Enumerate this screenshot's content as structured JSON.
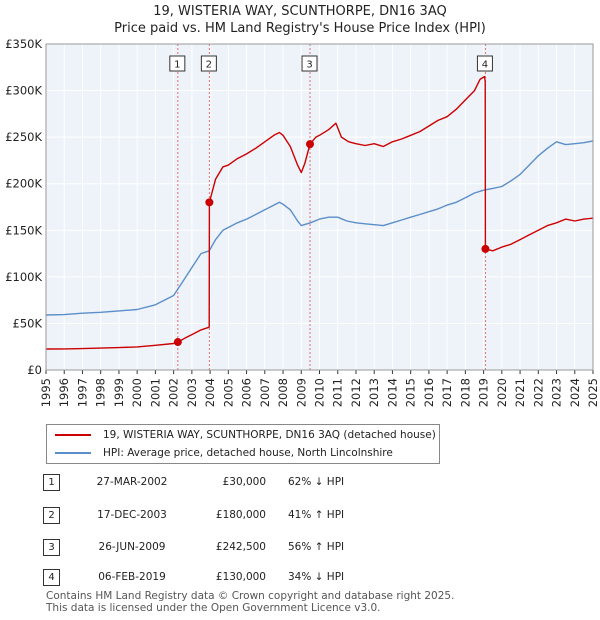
{
  "chart_data": {
    "type": "line",
    "title": "19, WISTERIA WAY, SCUNTHORPE, DN16 3AQ",
    "subtitle": "Price paid vs. HM Land Registry's House Price Index (HPI)",
    "ylim": [
      0,
      350000
    ],
    "xlim": [
      1995,
      2025
    ],
    "y_ticks": [
      0,
      50000,
      100000,
      150000,
      200000,
      250000,
      300000,
      350000
    ],
    "y_tick_labels": [
      "£0",
      "£50K",
      "£100K",
      "£150K",
      "£200K",
      "£250K",
      "£300K",
      "£350K"
    ],
    "x_ticks": [
      1995,
      1996,
      1997,
      1998,
      1999,
      2000,
      2001,
      2002,
      2003,
      2004,
      2005,
      2006,
      2007,
      2008,
      2009,
      2010,
      2011,
      2012,
      2013,
      2014,
      2015,
      2016,
      2017,
      2018,
      2019,
      2020,
      2021,
      2022,
      2023,
      2024,
      2025
    ],
    "grid": true,
    "series": [
      {
        "name": "19, WISTERIA WAY, SCUNTHORPE, DN16 3AQ (detached house)",
        "color": "#cc0000",
        "points": [
          [
            1995.0,
            22500
          ],
          [
            1996.0,
            22600
          ],
          [
            1997.0,
            23000
          ],
          [
            1998.0,
            23500
          ],
          [
            1999.0,
            24000
          ],
          [
            2000.0,
            24800
          ],
          [
            2001.0,
            26500
          ],
          [
            2002.0,
            28500
          ],
          [
            2002.23,
            30000
          ],
          [
            2002.6,
            34000
          ],
          [
            2003.0,
            38000
          ],
          [
            2003.5,
            43000
          ],
          [
            2003.95,
            46000
          ],
          [
            2003.96,
            180000
          ],
          [
            2004.3,
            205000
          ],
          [
            2004.7,
            218000
          ],
          [
            2005.0,
            220000
          ],
          [
            2005.5,
            227000
          ],
          [
            2006.0,
            232000
          ],
          [
            2006.5,
            238000
          ],
          [
            2007.0,
            245000
          ],
          [
            2007.5,
            252000
          ],
          [
            2007.8,
            255000
          ],
          [
            2008.0,
            252000
          ],
          [
            2008.4,
            240000
          ],
          [
            2008.8,
            220000
          ],
          [
            2009.0,
            212000
          ],
          [
            2009.2,
            222000
          ],
          [
            2009.48,
            242500
          ],
          [
            2009.8,
            250000
          ],
          [
            2010.0,
            252000
          ],
          [
            2010.5,
            258000
          ],
          [
            2010.9,
            265000
          ],
          [
            2011.2,
            250000
          ],
          [
            2011.6,
            245000
          ],
          [
            2012.0,
            243000
          ],
          [
            2012.5,
            241000
          ],
          [
            2013.0,
            243000
          ],
          [
            2013.5,
            240000
          ],
          [
            2014.0,
            245000
          ],
          [
            2014.5,
            248000
          ],
          [
            2015.0,
            252000
          ],
          [
            2015.5,
            256000
          ],
          [
            2016.0,
            262000
          ],
          [
            2016.5,
            268000
          ],
          [
            2017.0,
            272000
          ],
          [
            2017.5,
            280000
          ],
          [
            2018.0,
            290000
          ],
          [
            2018.5,
            300000
          ],
          [
            2018.8,
            312000
          ],
          [
            2019.05,
            315000
          ],
          [
            2019.09,
            310000
          ],
          [
            2019.1,
            130000
          ],
          [
            2019.5,
            128000
          ],
          [
            2020.0,
            132000
          ],
          [
            2020.5,
            135000
          ],
          [
            2021.0,
            140000
          ],
          [
            2021.5,
            145000
          ],
          [
            2022.0,
            150000
          ],
          [
            2022.5,
            155000
          ],
          [
            2023.0,
            158000
          ],
          [
            2023.5,
            162000
          ],
          [
            2024.0,
            160000
          ],
          [
            2024.5,
            162000
          ],
          [
            2025.0,
            163000
          ]
        ]
      },
      {
        "name": "HPI: Average price, detached house, North Lincolnshire",
        "color": "#5b8fc9",
        "points": [
          [
            1995.0,
            59000
          ],
          [
            1996.0,
            59500
          ],
          [
            1997.0,
            61000
          ],
          [
            1998.0,
            62000
          ],
          [
            1999.0,
            63500
          ],
          [
            2000.0,
            65000
          ],
          [
            2001.0,
            70000
          ],
          [
            2002.0,
            80000
          ],
          [
            2002.5,
            95000
          ],
          [
            2003.0,
            110000
          ],
          [
            2003.5,
            125000
          ],
          [
            2003.95,
            128000
          ],
          [
            2004.3,
            140000
          ],
          [
            2004.7,
            150000
          ],
          [
            2005.0,
            153000
          ],
          [
            2005.5,
            158000
          ],
          [
            2006.0,
            162000
          ],
          [
            2006.5,
            167000
          ],
          [
            2007.0,
            172000
          ],
          [
            2007.5,
            177000
          ],
          [
            2007.8,
            180000
          ],
          [
            2008.0,
            178000
          ],
          [
            2008.4,
            172000
          ],
          [
            2008.8,
            160000
          ],
          [
            2009.0,
            155000
          ],
          [
            2009.5,
            158000
          ],
          [
            2010.0,
            162000
          ],
          [
            2010.5,
            164000
          ],
          [
            2011.0,
            164000
          ],
          [
            2011.5,
            160000
          ],
          [
            2012.0,
            158000
          ],
          [
            2012.5,
            157000
          ],
          [
            2013.0,
            156000
          ],
          [
            2013.5,
            155000
          ],
          [
            2014.0,
            158000
          ],
          [
            2014.5,
            161000
          ],
          [
            2015.0,
            164000
          ],
          [
            2015.5,
            167000
          ],
          [
            2016.0,
            170000
          ],
          [
            2016.5,
            173000
          ],
          [
            2017.0,
            177000
          ],
          [
            2017.5,
            180000
          ],
          [
            2018.0,
            185000
          ],
          [
            2018.5,
            190000
          ],
          [
            2019.0,
            193000
          ],
          [
            2019.5,
            195000
          ],
          [
            2020.0,
            197000
          ],
          [
            2020.5,
            203000
          ],
          [
            2021.0,
            210000
          ],
          [
            2021.5,
            220000
          ],
          [
            2022.0,
            230000
          ],
          [
            2022.5,
            238000
          ],
          [
            2023.0,
            245000
          ],
          [
            2023.5,
            242000
          ],
          [
            2024.0,
            243000
          ],
          [
            2024.5,
            244000
          ],
          [
            2025.0,
            246000
          ]
        ]
      }
    ],
    "sales": [
      {
        "num": "1",
        "x": 2002.23,
        "price": 30000,
        "date": "27-MAR-2002",
        "price_label": "£30,000",
        "hpi": "62% ↓ HPI"
      },
      {
        "num": "2",
        "x": 2003.96,
        "price": 180000,
        "date": "17-DEC-2003",
        "price_label": "£180,000",
        "hpi": "41% ↑ HPI"
      },
      {
        "num": "3",
        "x": 2009.48,
        "price": 242500,
        "date": "26-JUN-2009",
        "price_label": "£242,500",
        "hpi": "56% ↑ HPI"
      },
      {
        "num": "4",
        "x": 2019.1,
        "price": 130000,
        "date": "06-FEB-2019",
        "price_label": "£130,000",
        "hpi": "34% ↓ HPI"
      }
    ]
  },
  "legend": {
    "property_label": "19, WISTERIA WAY, SCUNTHORPE, DN16 3AQ (detached house)",
    "hpi_label": "HPI: Average price, detached house, North Lincolnshire",
    "property_color": "#cc0000",
    "hpi_color": "#5b8fc9"
  },
  "footer": {
    "line1": "Contains HM Land Registry data © Crown copyright and database right 2025.",
    "line2": "This data is licensed under the Open Government Licence v3.0."
  }
}
